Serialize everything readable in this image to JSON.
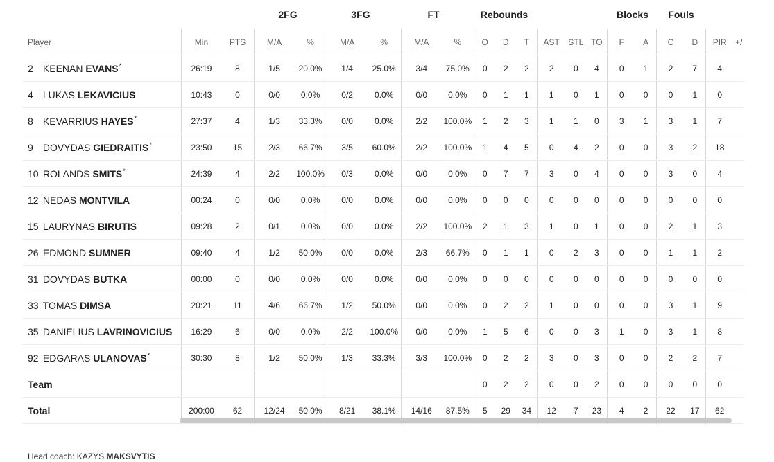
{
  "groups": {
    "fg2": "2FG",
    "fg3": "3FG",
    "ft": "FT",
    "rebounds": "Rebounds",
    "blocks": "Blocks",
    "fouls": "Fouls"
  },
  "columns": {
    "player": "Player",
    "min": "Min",
    "pts": "PTS",
    "fg2_ma": "M/A",
    "fg2_pct": "%",
    "fg3_ma": "M/A",
    "fg3_pct": "%",
    "ft_ma": "M/A",
    "ft_pct": "%",
    "reb_o": "O",
    "reb_d": "D",
    "reb_t": "T",
    "ast": "AST",
    "stl": "STL",
    "to": "TO",
    "blk_f": "F",
    "blk_a": "A",
    "foul_c": "C",
    "foul_d": "D",
    "pir": "PIR",
    "pm": "+/"
  },
  "players": [
    {
      "num": "2",
      "first": "KEENAN",
      "last": "EVANS",
      "star": "*",
      "min": "26:19",
      "pts": "8",
      "fg2_ma": "1/5",
      "fg2_pct": "20.0%",
      "fg3_ma": "1/4",
      "fg3_pct": "25.0%",
      "ft_ma": "3/4",
      "ft_pct": "75.0%",
      "reb_o": "0",
      "reb_d": "2",
      "reb_t": "2",
      "ast": "2",
      "stl": "0",
      "to": "4",
      "blk_f": "0",
      "blk_a": "1",
      "foul_c": "2",
      "foul_d": "7",
      "pir": "4"
    },
    {
      "num": "4",
      "first": "LUKAS",
      "last": "LEKAVICIUS",
      "star": "",
      "min": "10:43",
      "pts": "0",
      "fg2_ma": "0/0",
      "fg2_pct": "0.0%",
      "fg3_ma": "0/2",
      "fg3_pct": "0.0%",
      "ft_ma": "0/0",
      "ft_pct": "0.0%",
      "reb_o": "0",
      "reb_d": "1",
      "reb_t": "1",
      "ast": "1",
      "stl": "0",
      "to": "1",
      "blk_f": "0",
      "blk_a": "0",
      "foul_c": "0",
      "foul_d": "1",
      "pir": "0"
    },
    {
      "num": "8",
      "first": "KEVARRIUS",
      "last": "HAYES",
      "star": "*",
      "min": "27:37",
      "pts": "4",
      "fg2_ma": "1/3",
      "fg2_pct": "33.3%",
      "fg3_ma": "0/0",
      "fg3_pct": "0.0%",
      "ft_ma": "2/2",
      "ft_pct": "100.0%",
      "reb_o": "1",
      "reb_d": "2",
      "reb_t": "3",
      "ast": "1",
      "stl": "1",
      "to": "0",
      "blk_f": "3",
      "blk_a": "1",
      "foul_c": "3",
      "foul_d": "1",
      "pir": "7"
    },
    {
      "num": "9",
      "first": "DOVYDAS",
      "last": "GIEDRAITIS",
      "star": "*",
      "min": "23:50",
      "pts": "15",
      "fg2_ma": "2/3",
      "fg2_pct": "66.7%",
      "fg3_ma": "3/5",
      "fg3_pct": "60.0%",
      "ft_ma": "2/2",
      "ft_pct": "100.0%",
      "reb_o": "1",
      "reb_d": "4",
      "reb_t": "5",
      "ast": "0",
      "stl": "4",
      "to": "2",
      "blk_f": "0",
      "blk_a": "0",
      "foul_c": "3",
      "foul_d": "2",
      "pir": "18"
    },
    {
      "num": "10",
      "first": "ROLANDS",
      "last": "SMITS",
      "star": "*",
      "min": "24:39",
      "pts": "4",
      "fg2_ma": "2/2",
      "fg2_pct": "100.0%",
      "fg3_ma": "0/3",
      "fg3_pct": "0.0%",
      "ft_ma": "0/0",
      "ft_pct": "0.0%",
      "reb_o": "0",
      "reb_d": "7",
      "reb_t": "7",
      "ast": "3",
      "stl": "0",
      "to": "4",
      "blk_f": "0",
      "blk_a": "0",
      "foul_c": "3",
      "foul_d": "0",
      "pir": "4"
    },
    {
      "num": "12",
      "first": "NEDAS",
      "last": "MONTVILA",
      "star": "",
      "min": "00:24",
      "pts": "0",
      "fg2_ma": "0/0",
      "fg2_pct": "0.0%",
      "fg3_ma": "0/0",
      "fg3_pct": "0.0%",
      "ft_ma": "0/0",
      "ft_pct": "0.0%",
      "reb_o": "0",
      "reb_d": "0",
      "reb_t": "0",
      "ast": "0",
      "stl": "0",
      "to": "0",
      "blk_f": "0",
      "blk_a": "0",
      "foul_c": "0",
      "foul_d": "0",
      "pir": "0"
    },
    {
      "num": "15",
      "first": "LAURYNAS",
      "last": "BIRUTIS",
      "star": "",
      "min": "09:28",
      "pts": "2",
      "fg2_ma": "0/1",
      "fg2_pct": "0.0%",
      "fg3_ma": "0/0",
      "fg3_pct": "0.0%",
      "ft_ma": "2/2",
      "ft_pct": "100.0%",
      "reb_o": "2",
      "reb_d": "1",
      "reb_t": "3",
      "ast": "1",
      "stl": "0",
      "to": "1",
      "blk_f": "0",
      "blk_a": "0",
      "foul_c": "2",
      "foul_d": "1",
      "pir": "3"
    },
    {
      "num": "26",
      "first": "EDMOND",
      "last": "SUMNER",
      "star": "",
      "min": "09:40",
      "pts": "4",
      "fg2_ma": "1/2",
      "fg2_pct": "50.0%",
      "fg3_ma": "0/0",
      "fg3_pct": "0.0%",
      "ft_ma": "2/3",
      "ft_pct": "66.7%",
      "reb_o": "0",
      "reb_d": "1",
      "reb_t": "1",
      "ast": "0",
      "stl": "2",
      "to": "3",
      "blk_f": "0",
      "blk_a": "0",
      "foul_c": "1",
      "foul_d": "1",
      "pir": "2"
    },
    {
      "num": "31",
      "first": "DOVYDAS",
      "last": "BUTKA",
      "star": "",
      "min": "00:00",
      "pts": "0",
      "fg2_ma": "0/0",
      "fg2_pct": "0.0%",
      "fg3_ma": "0/0",
      "fg3_pct": "0.0%",
      "ft_ma": "0/0",
      "ft_pct": "0.0%",
      "reb_o": "0",
      "reb_d": "0",
      "reb_t": "0",
      "ast": "0",
      "stl": "0",
      "to": "0",
      "blk_f": "0",
      "blk_a": "0",
      "foul_c": "0",
      "foul_d": "0",
      "pir": "0"
    },
    {
      "num": "33",
      "first": "TOMAS",
      "last": "DIMSA",
      "star": "",
      "min": "20:21",
      "pts": "11",
      "fg2_ma": "4/6",
      "fg2_pct": "66.7%",
      "fg3_ma": "1/2",
      "fg3_pct": "50.0%",
      "ft_ma": "0/0",
      "ft_pct": "0.0%",
      "reb_o": "0",
      "reb_d": "2",
      "reb_t": "2",
      "ast": "1",
      "stl": "0",
      "to": "0",
      "blk_f": "0",
      "blk_a": "0",
      "foul_c": "3",
      "foul_d": "1",
      "pir": "9"
    },
    {
      "num": "35",
      "first": "DANIELIUS",
      "last": "LAVRINOVICIUS",
      "star": "",
      "min": "16:29",
      "pts": "6",
      "fg2_ma": "0/0",
      "fg2_pct": "0.0%",
      "fg3_ma": "2/2",
      "fg3_pct": "100.0%",
      "ft_ma": "0/0",
      "ft_pct": "0.0%",
      "reb_o": "1",
      "reb_d": "5",
      "reb_t": "6",
      "ast": "0",
      "stl": "0",
      "to": "3",
      "blk_f": "1",
      "blk_a": "0",
      "foul_c": "3",
      "foul_d": "1",
      "pir": "8"
    },
    {
      "num": "92",
      "first": "EDGARAS",
      "last": "ULANOVAS",
      "star": "*",
      "min": "30:30",
      "pts": "8",
      "fg2_ma": "1/2",
      "fg2_pct": "50.0%",
      "fg3_ma": "1/3",
      "fg3_pct": "33.3%",
      "ft_ma": "3/3",
      "ft_pct": "100.0%",
      "reb_o": "0",
      "reb_d": "2",
      "reb_t": "2",
      "ast": "3",
      "stl": "0",
      "to": "3",
      "blk_f": "0",
      "blk_a": "0",
      "foul_c": "2",
      "foul_d": "2",
      "pir": "7"
    }
  ],
  "team": {
    "label": "Team",
    "min": "",
    "pts": "",
    "fg2_ma": "",
    "fg2_pct": "",
    "fg3_ma": "",
    "fg3_pct": "",
    "ft_ma": "",
    "ft_pct": "",
    "reb_o": "0",
    "reb_d": "2",
    "reb_t": "2",
    "ast": "0",
    "stl": "0",
    "to": "2",
    "blk_f": "0",
    "blk_a": "0",
    "foul_c": "0",
    "foul_d": "0",
    "pir": "0"
  },
  "total": {
    "label": "Total",
    "min": "200:00",
    "pts": "62",
    "fg2_ma": "12/24",
    "fg2_pct": "50.0%",
    "fg3_ma": "8/21",
    "fg3_pct": "38.1%",
    "ft_ma": "14/16",
    "ft_pct": "87.5%",
    "reb_o": "5",
    "reb_d": "29",
    "reb_t": "34",
    "ast": "12",
    "stl": "7",
    "to": "23",
    "blk_f": "4",
    "blk_a": "2",
    "foul_c": "22",
    "foul_d": "17",
    "pir": "62"
  },
  "coach": {
    "label": "Head coach:",
    "first": "KAZYS",
    "last": "MAKSVYTIS"
  }
}
